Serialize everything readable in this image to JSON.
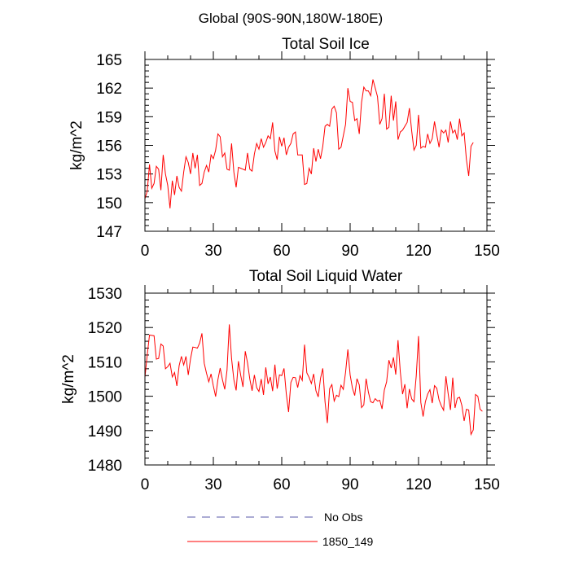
{
  "figure": {
    "title": "Global (90S-90N,180W-180E)"
  },
  "legend": {
    "items": [
      {
        "label": "No Obs",
        "color": "#5a5aa8",
        "dashed": true
      },
      {
        "label": "1850_149",
        "color": "#ff0000",
        "dashed": false
      }
    ]
  },
  "chart_data": [
    {
      "type": "line",
      "title": "Total Soil Ice",
      "ylabel": "kg/m^2",
      "xlim": [
        0,
        150
      ],
      "ylim": [
        147,
        165
      ],
      "xticks": [
        0,
        30,
        60,
        90,
        120,
        150
      ],
      "yticks": [
        147,
        150,
        153,
        156,
        159,
        162,
        165
      ],
      "color": "#ff0000",
      "series": [
        {
          "values": [
            150.4,
            151.2,
            154.0,
            151.5,
            152.0,
            153.8,
            153.5,
            151.3,
            155.0,
            153.0,
            151.8,
            149.4,
            152.3,
            150.8,
            152.8,
            151.6,
            151.2,
            153.2,
            154.8,
            154.2,
            153.0,
            155.2,
            153.6,
            155.0,
            151.8,
            152.0,
            153.2,
            153.9,
            153.2,
            155.0,
            154.6,
            155.5,
            157.2,
            156.9,
            154.8,
            155.2,
            153.5,
            153.4,
            156.2,
            153.2,
            151.6,
            153.7,
            153.6,
            153.5,
            153.4,
            155.2,
            153.5,
            153.3,
            155.1,
            156.2,
            155.6,
            156.7,
            155.8,
            156.3,
            157.0,
            156.7,
            158.4,
            155.4,
            154.5,
            156.9,
            155.9,
            156.8,
            155.0,
            155.8,
            156.2,
            157.2,
            157.4,
            155.0,
            155.0,
            155.0,
            151.9,
            152.0,
            153.6,
            153.0,
            155.7,
            154.3,
            155.6,
            154.6,
            155.9,
            158.0,
            158.2,
            158.0,
            159.8,
            160.1,
            159.4,
            155.6,
            155.8,
            157.0,
            158.2,
            162.0,
            160.6,
            160.5,
            158.6,
            158.8,
            157.2,
            160.5,
            162.1,
            161.7,
            161.7,
            161.2,
            162.9,
            162.0,
            161.1,
            158.2,
            158.8,
            161.4,
            157.7,
            157.9,
            161.2,
            158.6,
            160.6,
            156.6,
            157.4,
            157.6,
            158.0,
            158.4,
            159.9,
            157.5,
            155.5,
            156.0,
            159.2,
            155.7,
            155.9,
            155.8,
            157.2,
            156.2,
            156.7,
            158.5,
            157.1,
            155.8,
            157.6,
            157.3,
            157.6,
            156.3,
            158.5,
            157.3,
            157.6,
            156.6,
            158.8,
            157.0,
            157.3,
            154.5,
            152.8,
            155.9,
            156.3
          ]
        }
      ]
    },
    {
      "type": "line",
      "title": "Total Soil Liquid Water",
      "ylabel": "kg/m^2",
      "xlim": [
        0,
        150
      ],
      "ylim": [
        1480,
        1530
      ],
      "xticks": [
        0,
        30,
        60,
        90,
        120,
        150
      ],
      "yticks": [
        1480,
        1490,
        1500,
        1510,
        1520,
        1530
      ],
      "color": "#ff0000",
      "series": [
        {
          "values": [
            1505.5,
            1512.0,
            1517.8,
            1517.7,
            1517.6,
            1510.8,
            1511.0,
            1515.2,
            1514.6,
            1508.0,
            1508.6,
            1509.6,
            1505.6,
            1506.9,
            1503.0,
            1508.9,
            1511.6,
            1509.1,
            1511.6,
            1506.2,
            1510.9,
            1514.3,
            1514.2,
            1514.0,
            1515.5,
            1518.3,
            1509.6,
            1506.7,
            1504.2,
            1506.5,
            1503.0,
            1499.9,
            1504.8,
            1508.2,
            1504.8,
            1502.0,
            1507.6,
            1520.9,
            1510.9,
            1504.8,
            1501.7,
            1510.2,
            1506.1,
            1502.7,
            1513.1,
            1509.7,
            1505.0,
            1501.6,
            1506.2,
            1502.5,
            1501.4,
            1505.0,
            1500.4,
            1508.4,
            1503.6,
            1505.6,
            1501.5,
            1509.2,
            1502.2,
            1506.2,
            1506.0,
            1508.1,
            1500.7,
            1495.4,
            1504.0,
            1505.5,
            1505.4,
            1502.5,
            1506.0,
            1504.6,
            1515.0,
            1506.8,
            1505.5,
            1503.7,
            1506.5,
            1501.6,
            1499.8,
            1505.2,
            1508.1,
            1498.3,
            1492.2,
            1502.2,
            1503.4,
            1498.6,
            1500.3,
            1499.9,
            1503.2,
            1502.0,
            1507.0,
            1513.6,
            1506.2,
            1502.4,
            1500.2,
            1505.1,
            1503.3,
            1496.7,
            1497.5,
            1505.1,
            1501.2,
            1498.4,
            1498.1,
            1499.3,
            1498.6,
            1498.8,
            1496.3,
            1501.8,
            1504.2,
            1510.5,
            1508.2,
            1511.3,
            1506.3,
            1516.3,
            1507.1,
            1500.6,
            1503.5,
            1496.5,
            1502.1,
            1499.2,
            1498.4,
            1506.0,
            1517.5,
            1498.2,
            1494.1,
            1498.4,
            1500.6,
            1501.9,
            1498.0,
            1503.1,
            1502.3,
            1498.9,
            1497.2,
            1495.9,
            1505.8,
            1500.7,
            1496.0,
            1505.4,
            1496.6,
            1499.4,
            1499.7,
            1497.3,
            1492.8,
            1496.2,
            1496.0,
            1488.9,
            1490.2,
            1500.5,
            1500.0,
            1496.2,
            1495.6
          ]
        }
      ]
    }
  ]
}
